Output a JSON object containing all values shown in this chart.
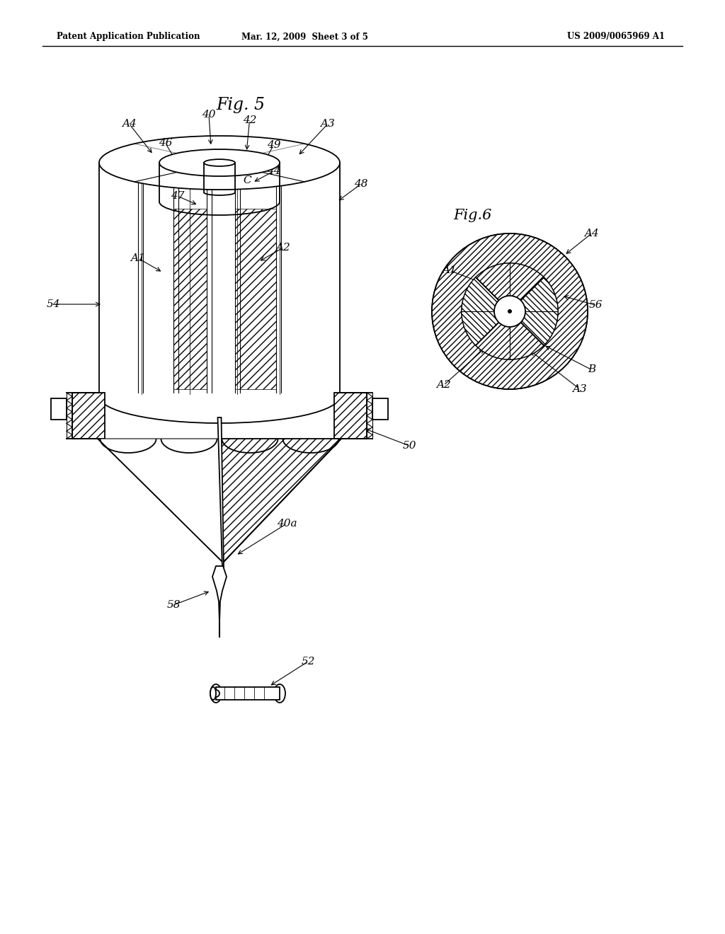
{
  "background_color": "#ffffff",
  "line_color": "#000000",
  "header_left": "Patent Application Publication",
  "header_mid": "Mar. 12, 2009  Sheet 3 of 5",
  "header_right": "US 2009/0065969 A1"
}
